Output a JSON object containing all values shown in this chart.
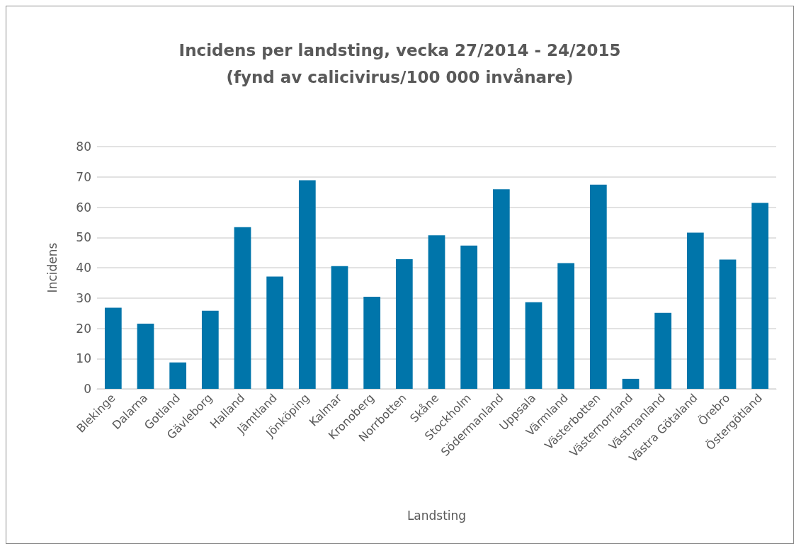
{
  "chart_data": {
    "type": "bar",
    "title": "Incidens per landsting, vecka 27/2014 - 24/2015\n(fynd av calicivirus/100 000 invånare)",
    "xlabel": "Landsting",
    "ylabel": "Incidens",
    "categories": [
      "Blekinge",
      "Dalarna",
      "Gotland",
      "Gävleborg",
      "Halland",
      "Jämtland",
      "Jönköping",
      "Kalmar",
      "Kronoberg",
      "Norrbotten",
      "Skåne",
      "Stockholm",
      "Södermanland",
      "Uppsala",
      "Värmland",
      "Västerbotten",
      "Västernorrland",
      "Västmanland",
      "Västra Götaland",
      "Örebro",
      "Östergötland"
    ],
    "values": [
      26.8,
      21.5,
      8.7,
      25.8,
      53.4,
      37.1,
      68.9,
      40.5,
      30.4,
      42.8,
      50.7,
      47.3,
      65.9,
      28.6,
      41.5,
      67.4,
      3.3,
      25.1,
      51.6,
      42.7,
      61.4
    ],
    "color": "#0075aa",
    "ylim": [
      0,
      80
    ],
    "yticks": [
      0,
      10,
      20,
      30,
      40,
      50,
      60,
      70,
      80
    ],
    "grid": "y"
  }
}
